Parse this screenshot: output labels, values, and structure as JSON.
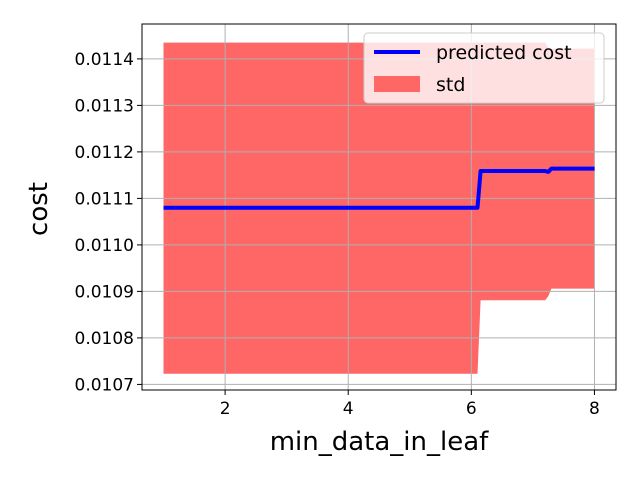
{
  "chart_data": {
    "type": "line",
    "title": "",
    "xlabel": "min_data_in_leaf",
    "ylabel": "cost",
    "xlim": [
      0.65,
      8.35
    ],
    "ylim": [
      0.010688,
      0.011475
    ],
    "xticks": [
      2,
      4,
      6,
      8
    ],
    "xtick_labels": [
      "2",
      "4",
      "6",
      "8"
    ],
    "yticks": [
      0.0107,
      0.0108,
      0.0109,
      0.011,
      0.0111,
      0.0112,
      0.0113,
      0.0114
    ],
    "ytick_labels": [
      "0.0107",
      "0.0108",
      "0.0109",
      "0.0110",
      "0.0111",
      "0.0112",
      "0.0113",
      "0.0114"
    ],
    "grid": true,
    "legend_position": "top-right",
    "colors": {
      "line": "#0000ff",
      "band": "#ff6666",
      "grid": "#b0b0b0"
    },
    "series": [
      {
        "name": "predicted cost",
        "kind": "line",
        "x": [
          1,
          6.1,
          6.15,
          7.2,
          7.25,
          7.3,
          8
        ],
        "y": [
          0.01108,
          0.01108,
          0.011159,
          0.011159,
          0.011157,
          0.011164,
          0.011164
        ]
      },
      {
        "name": "std",
        "kind": "band",
        "x": [
          1,
          6.1,
          6.15,
          7.2,
          7.25,
          7.3,
          8
        ],
        "lower": [
          0.010723,
          0.010723,
          0.010881,
          0.010881,
          0.01089,
          0.010906,
          0.010906
        ],
        "upper": [
          0.011435,
          0.011435,
          0.011435,
          0.011435,
          0.011424,
          0.011422,
          0.011422
        ]
      }
    ]
  }
}
